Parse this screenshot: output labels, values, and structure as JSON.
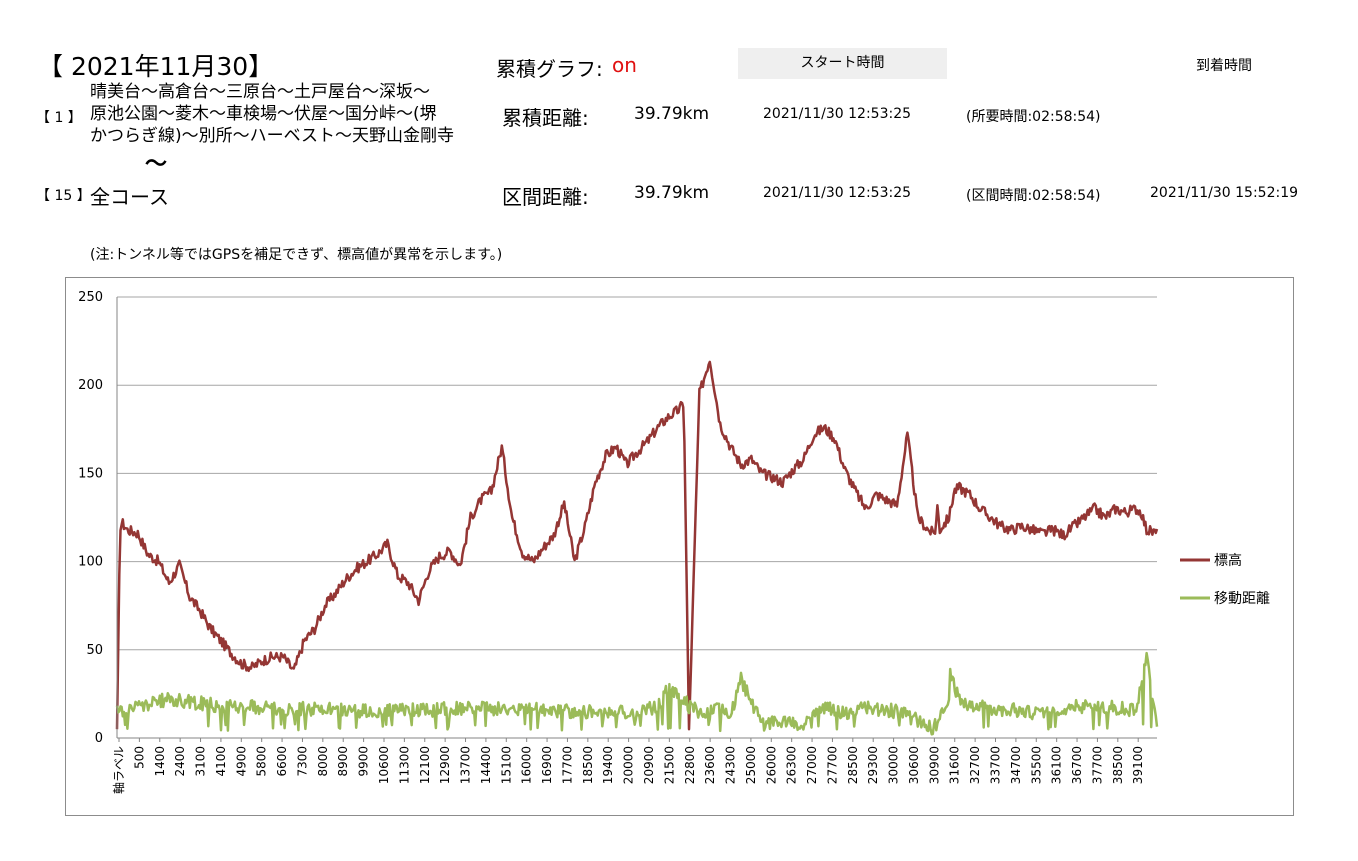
{
  "header": {
    "date_title": "【 2021年11月30】",
    "route_index": "【 1 】",
    "route_lines": [
      "晴美台～高倉台～三原台～土戸屋台～深坂～",
      "原池公園～菱木～車検場～伏屋～国分峠～(堺",
      "かつらぎ線)～別所～ハーベスト～天野山金剛寺"
    ],
    "route_tilde": "〜",
    "course_index": "【 15 】",
    "course_name": "全コース",
    "cumulative_graph_label": "累積グラフ:",
    "cumulative_graph_value": "on",
    "start_time_label": "スタート時間",
    "arrival_time_label": "到着時間",
    "cumulative_distance_label": "累積距離:",
    "cumulative_distance_value": "39.79km",
    "cumulative_start": "2021/11/30 12:53:25",
    "required_time": "(所要時間:02:58:54)",
    "section_distance_label": "区間距離:",
    "section_distance_value": "39.79km",
    "section_start": "2021/11/30 12:53:25",
    "section_time": "(区間時間:02:58:54)",
    "arrival_time": "2021/11/30 15:52:19",
    "note": "(注:トンネル等ではGPSを補足できず、標高値が異常を示します。)"
  },
  "colors": {
    "elevation": "#943634",
    "distance": "#9bbb59",
    "grid": "#a6a6a6",
    "accent": "#e01010"
  },
  "chart_data": {
    "type": "line",
    "ylim": [
      0,
      250
    ],
    "yticks": [
      0,
      50,
      100,
      150,
      200,
      250
    ],
    "grid": "horizontal",
    "legend_position": "right",
    "x_categories": [
      "軸ラベル",
      "500",
      "1400",
      "2400",
      "3100",
      "4100",
      "4900",
      "5800",
      "6600",
      "7300",
      "8000",
      "8900",
      "9900",
      "10600",
      "11300",
      "12100",
      "12900",
      "13700",
      "14400",
      "15100",
      "16000",
      "16900",
      "17700",
      "18500",
      "19400",
      "20000",
      "20900",
      "21500",
      "22800",
      "23600",
      "24300",
      "25000",
      "26000",
      "26300",
      "27000",
      "27700",
      "28500",
      "29300",
      "30000",
      "30600",
      "30900",
      "31600",
      "32700",
      "33700",
      "34700",
      "35500",
      "36100",
      "36700",
      "37700",
      "38500",
      "39100"
    ],
    "series": [
      {
        "name": "標高",
        "color": "#943634",
        "x_fraction": [
          0.0,
          0.003,
          0.005,
          0.01,
          0.02,
          0.03,
          0.04,
          0.05,
          0.06,
          0.07,
          0.08,
          0.09,
          0.1,
          0.11,
          0.12,
          0.13,
          0.14,
          0.15,
          0.16,
          0.17,
          0.18,
          0.19,
          0.2,
          0.21,
          0.22,
          0.23,
          0.24,
          0.25,
          0.26,
          0.27,
          0.28,
          0.29,
          0.3,
          0.31,
          0.32,
          0.33,
          0.34,
          0.35,
          0.36,
          0.37,
          0.38,
          0.39,
          0.4,
          0.41,
          0.42,
          0.43,
          0.44,
          0.45,
          0.46,
          0.47,
          0.48,
          0.49,
          0.5,
          0.51,
          0.52,
          0.53,
          0.54,
          0.545,
          0.55,
          0.56,
          0.57,
          0.58,
          0.59,
          0.6,
          0.61,
          0.62,
          0.63,
          0.64,
          0.65,
          0.66,
          0.67,
          0.68,
          0.69,
          0.7,
          0.71,
          0.72,
          0.73,
          0.74,
          0.75,
          0.76,
          0.77,
          0.78,
          0.785,
          0.787,
          0.789,
          0.791,
          0.8,
          0.805,
          0.81,
          0.82,
          0.83,
          0.84,
          0.85,
          0.86,
          0.87,
          0.88,
          0.89,
          0.9,
          0.91,
          0.92,
          0.93,
          0.94,
          0.95,
          0.96,
          0.97,
          0.98,
          0.985,
          0.99,
          1.0
        ],
        "values": [
          5,
          120,
          122,
          118,
          116,
          104,
          100,
          88,
          98,
          80,
          72,
          62,
          55,
          48,
          42,
          40,
          44,
          46,
          46,
          38,
          55,
          62,
          75,
          82,
          90,
          96,
          100,
          104,
          110,
          92,
          88,
          78,
          95,
          103,
          106,
          98,
          125,
          135,
          140,
          165,
          125,
          105,
          100,
          108,
          115,
          133,
          100,
          120,
          145,
          160,
          165,
          155,
          162,
          168,
          176,
          182,
          186,
          190,
          5,
          195,
          215,
          178,
          165,
          155,
          158,
          150,
          148,
          145,
          152,
          158,
          172,
          176,
          170,
          152,
          140,
          130,
          138,
          135,
          132,
          172,
          125,
          118,
          116,
          118,
          132,
          118,
          125,
          140,
          142,
          138,
          130,
          125,
          120,
          118,
          120,
          118,
          116,
          118,
          115,
          120,
          125,
          130,
          125,
          130,
          128,
          130,
          128,
          118,
          116
        ],
        "annotations": {}
      },
      {
        "name": "移動距離",
        "color": "#9bbb59",
        "x_fraction": [
          0.0,
          0.05,
          0.1,
          0.15,
          0.2,
          0.25,
          0.3,
          0.35,
          0.4,
          0.45,
          0.5,
          0.52,
          0.53,
          0.54,
          0.55,
          0.56,
          0.57,
          0.58,
          0.59,
          0.6,
          0.62,
          0.64,
          0.66,
          0.68,
          0.7,
          0.72,
          0.74,
          0.76,
          0.78,
          0.786,
          0.79,
          0.8,
          0.8,
          0.81,
          0.82,
          0.84,
          0.86,
          0.88,
          0.9,
          0.92,
          0.94,
          0.96,
          0.98,
          0.99,
          1.0
        ],
        "values": [
          15,
          22,
          18,
          17,
          16,
          15,
          16,
          17,
          16,
          15,
          14,
          18,
          28,
          26,
          18,
          15,
          14,
          18,
          12,
          33,
          8,
          10,
          7,
          18,
          14,
          17,
          16,
          14,
          6,
          6,
          10,
          20,
          38,
          22,
          18,
          17,
          16,
          14,
          16,
          18,
          18,
          17,
          16,
          45,
          5
        ]
      }
    ]
  }
}
